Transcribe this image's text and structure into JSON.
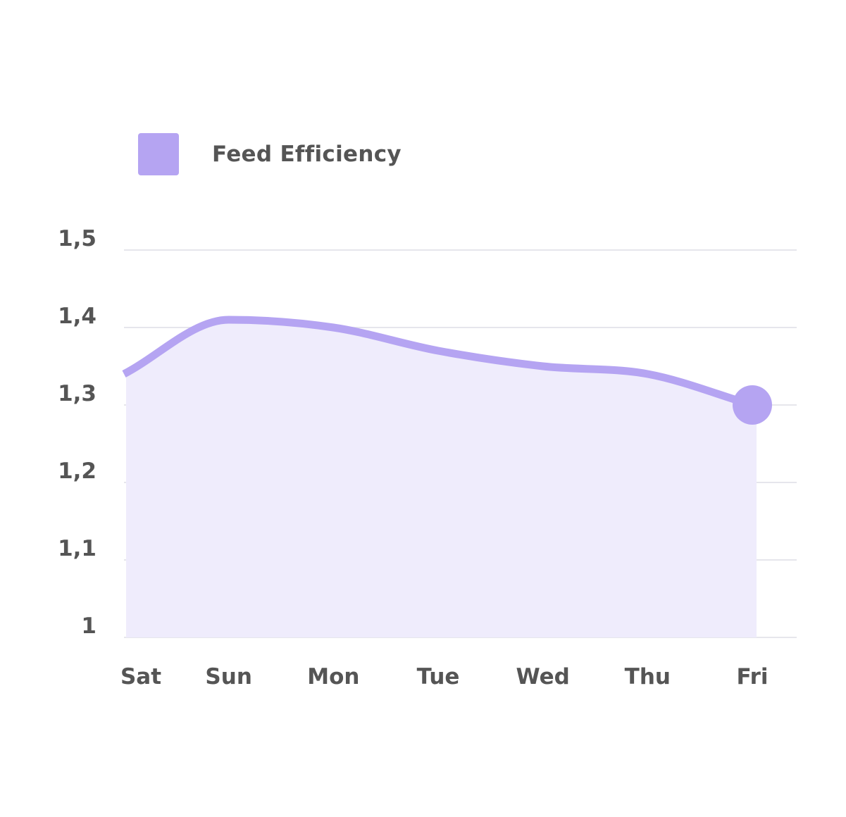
{
  "chart_data": {
    "type": "area",
    "categories": [
      "Sat",
      "Sun",
      "Mon",
      "Tue",
      "Wed",
      "Thu",
      "Fri"
    ],
    "series": [
      {
        "name": "Feed Efficiency",
        "values": [
          1.34,
          1.41,
          1.4,
          1.37,
          1.35,
          1.34,
          1.3
        ]
      }
    ],
    "legend": {
      "position": "top-left",
      "entries": [
        "Feed Efficiency"
      ]
    },
    "y_ticks": [
      "1",
      "1,1",
      "1,2",
      "1,3",
      "1,4",
      "1,5"
    ],
    "ylim": [
      1,
      1.5
    ],
    "grid": true,
    "title": "",
    "xlabel": "",
    "ylabel": "",
    "colors": {
      "line": "#b5a4f2",
      "fill": "#efecfc",
      "grid": "#e6e6ec",
      "text": "#555555"
    }
  }
}
